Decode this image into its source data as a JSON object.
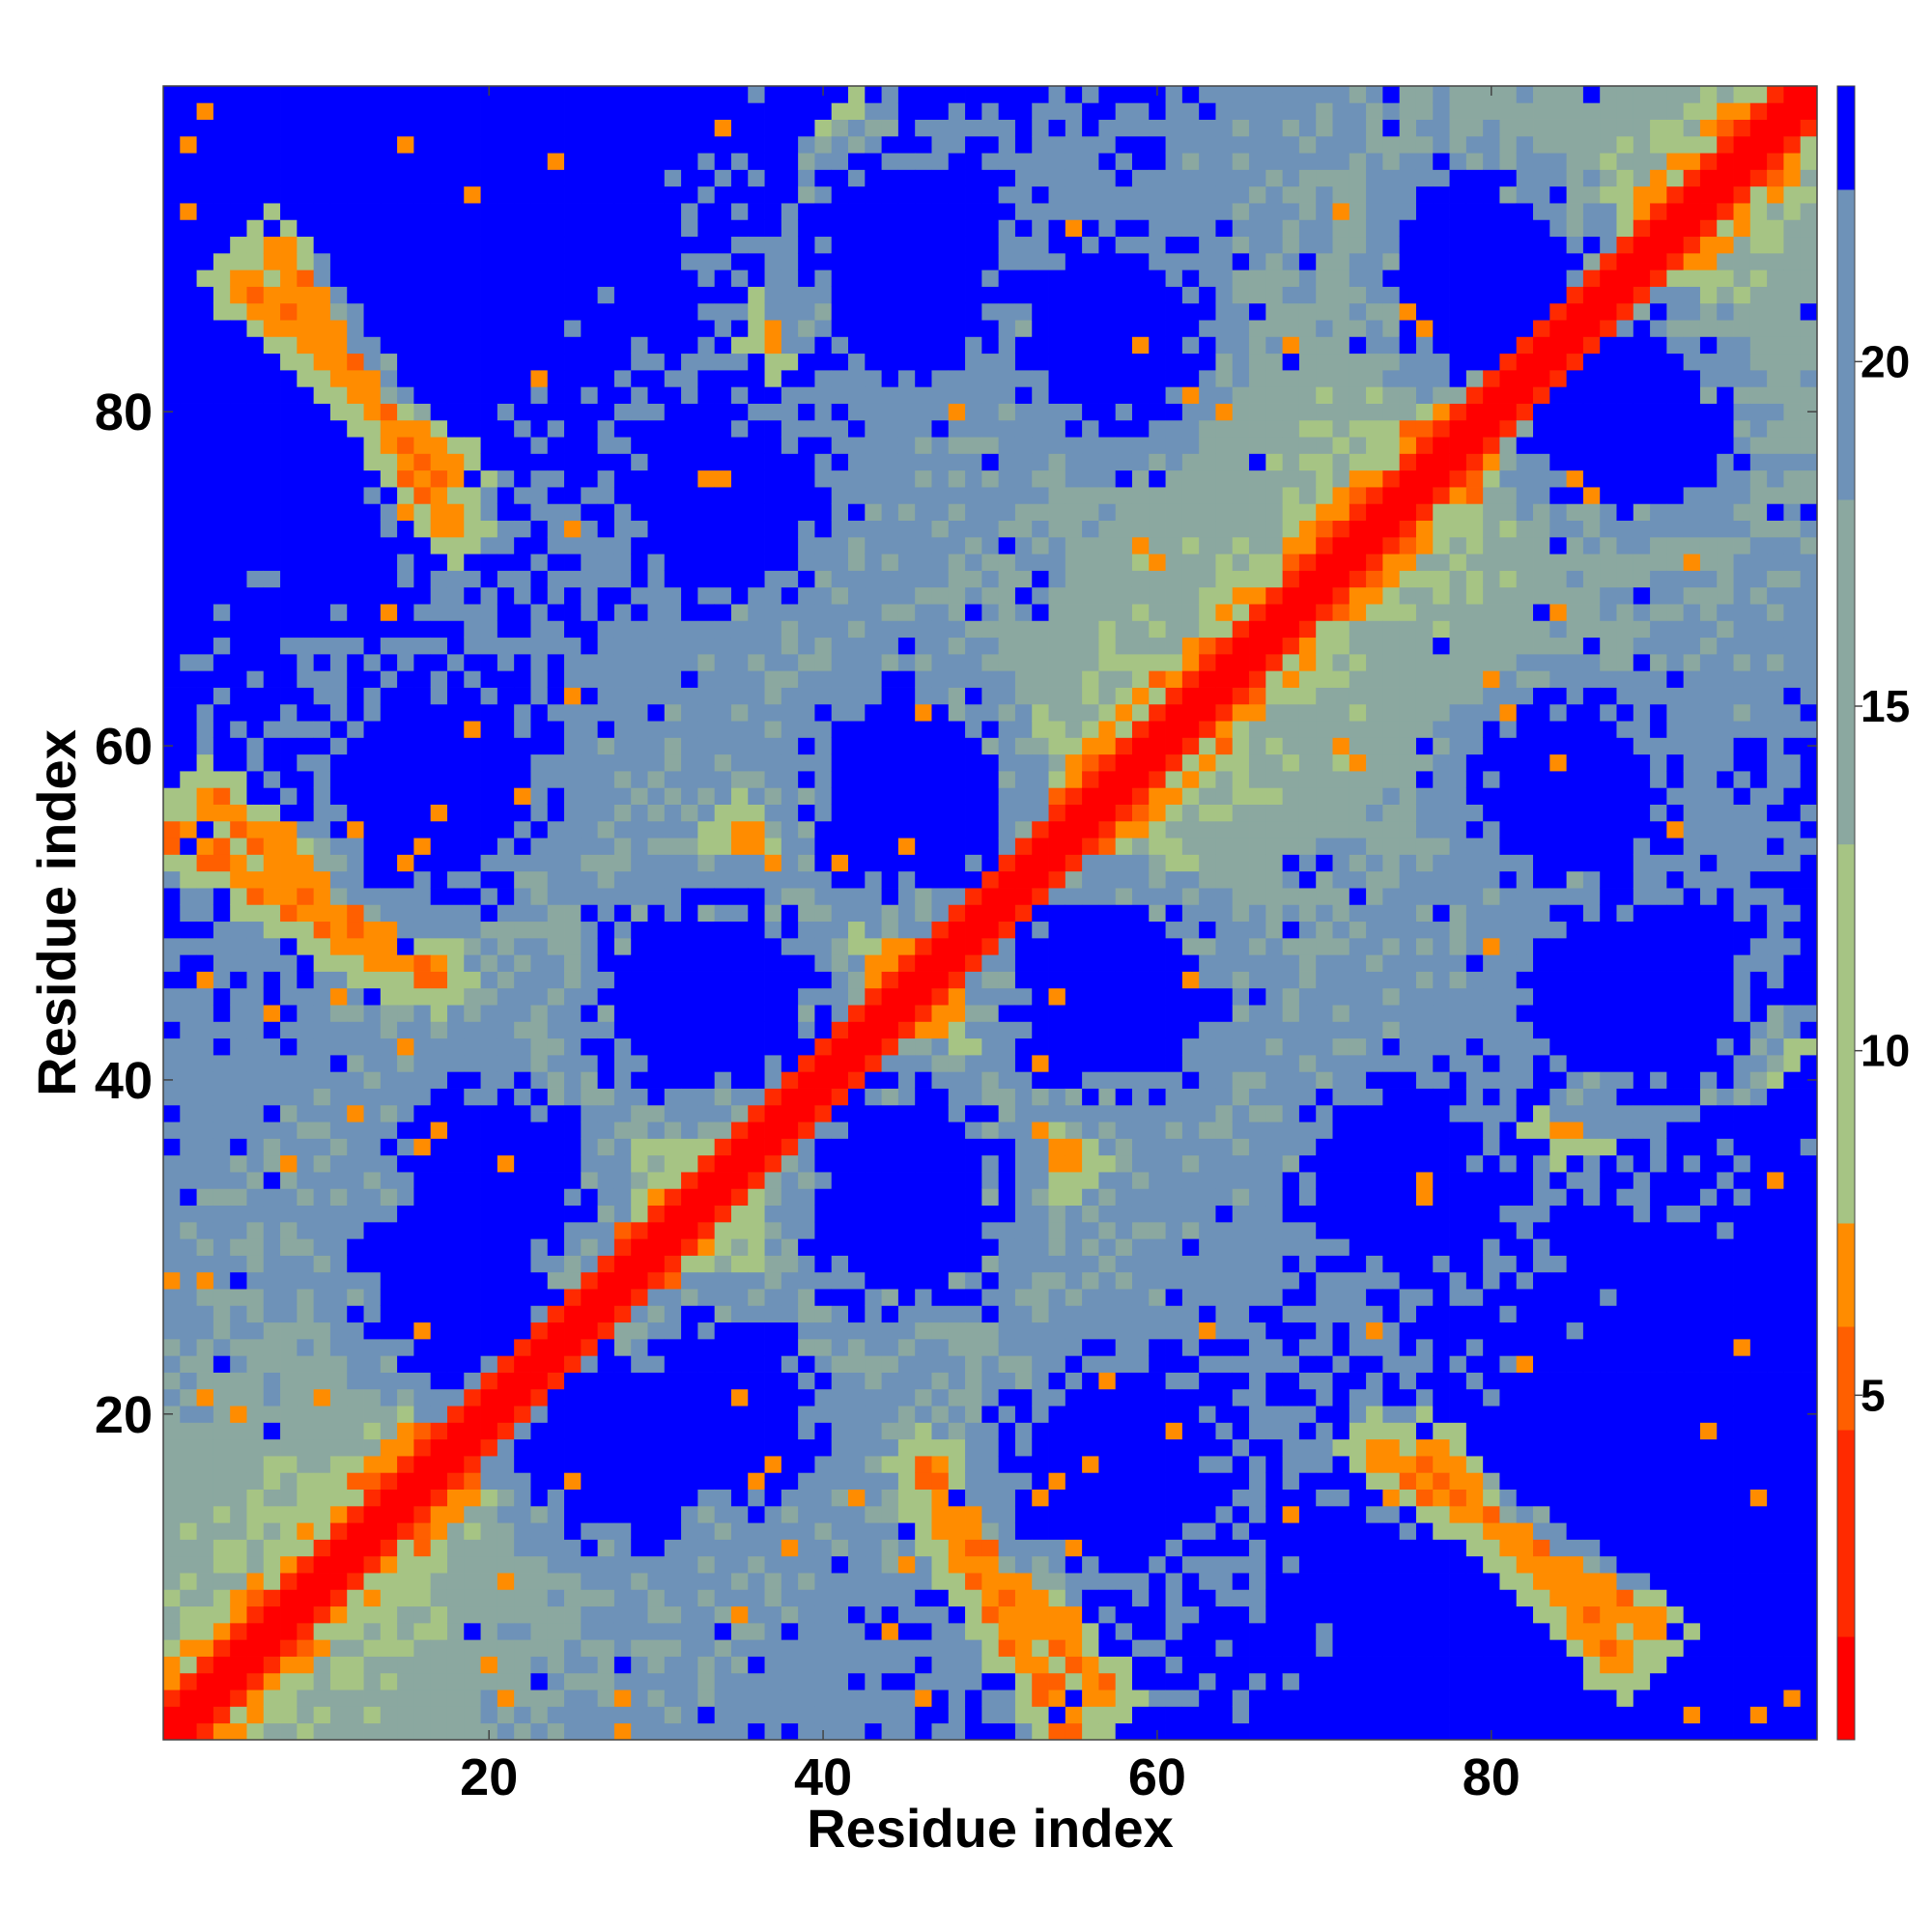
{
  "chart_data": {
    "type": "heatmap",
    "title": "",
    "xlabel": "Residue index",
    "ylabel": "Residue index",
    "n_residues": 99,
    "xlim": [
      1,
      99
    ],
    "ylim": [
      1,
      99
    ],
    "x_ticks": [
      20,
      40,
      60,
      80
    ],
    "y_ticks": [
      20,
      40,
      60,
      80
    ],
    "colorbar": {
      "range": [
        0,
        24
      ],
      "ticks": [
        5,
        10,
        15,
        20
      ],
      "bands": [
        {
          "from": 0,
          "to": 1.5,
          "color": "#ff0000"
        },
        {
          "from": 1.5,
          "to": 4.5,
          "color": "#ff2a00"
        },
        {
          "from": 4.5,
          "to": 6,
          "color": "#ff5f00"
        },
        {
          "from": 6,
          "to": 7.5,
          "color": "#ff8c00"
        },
        {
          "from": 7.5,
          "to": 13,
          "color": "#a6c484"
        },
        {
          "from": 13,
          "to": 18,
          "color": "#8ba8a0"
        },
        {
          "from": 18,
          "to": 22.5,
          "color": "#6e92b8"
        },
        {
          "from": 22.5,
          "to": 24,
          "color": "#0000ff"
        }
      ]
    },
    "matrix_description": "Symmetric pairwise residue distance map (Å). Values near the main diagonal |i-j|<=2 are ~0-4; anti-diagonal contact ridges through (44,44), short-range helix-like contacts near |i-j|~4; distances above ~22.5 shown as saturated blue.",
    "contact_ridges": [
      {
        "i_start": 1,
        "j_start": 55,
        "i_end": 14,
        "j_end": 47
      },
      {
        "i_start": 5,
        "j_start": 88,
        "i_end": 18,
        "j_end": 76
      },
      {
        "i_start": 34,
        "j_start": 53,
        "i_end": 44,
        "j_end": 45
      },
      {
        "i_start": 45,
        "j_start": 42,
        "i_end": 55,
        "j_end": 35
      },
      {
        "i_start": 46,
        "j_start": 17,
        "i_end": 57,
        "j_end": 3
      },
      {
        "i_start": 73,
        "j_start": 18,
        "i_end": 90,
        "j_end": 7
      },
      {
        "i_start": 84,
        "j_start": 37,
        "i_end": 97,
        "j_end": 42
      }
    ],
    "far_regions": [
      {
        "i": 20,
        "j": 87
      },
      {
        "i": 45,
        "j": 88
      },
      {
        "i": 80,
        "j": 88
      },
      {
        "i": 17,
        "j": 57
      },
      {
        "i": 45,
        "j": 57
      },
      {
        "i": 85,
        "j": 57
      },
      {
        "i": 32,
        "j": 45
      },
      {
        "i": 58,
        "j": 45
      },
      {
        "i": 90,
        "j": 45
      },
      {
        "i": 20,
        "j": 34
      },
      {
        "i": 45,
        "j": 34
      },
      {
        "i": 74,
        "j": 34
      },
      {
        "i": 28,
        "j": 18
      },
      {
        "i": 58,
        "j": 18
      },
      {
        "i": 90,
        "j": 18
      }
    ]
  }
}
